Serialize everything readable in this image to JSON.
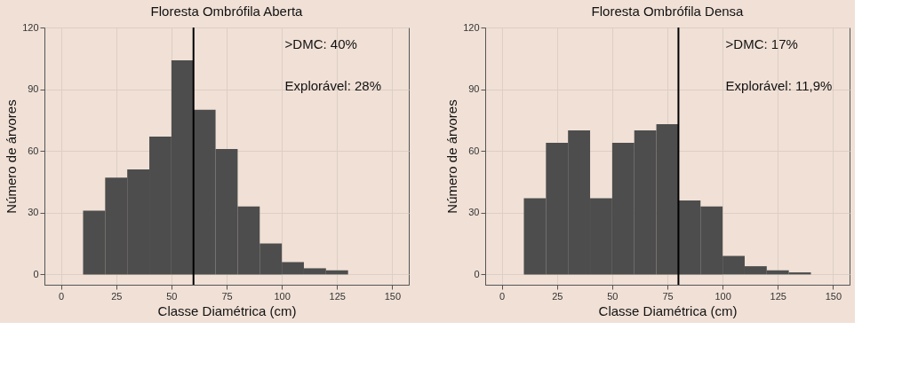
{
  "chart_data": [
    {
      "type": "histogram",
      "title": "Floresta Ombrófila Aberta",
      "xlabel": "Classe Diamétrica (cm)",
      "ylabel": "Número de árvores",
      "bins": [
        10,
        20,
        30,
        40,
        50,
        60,
        70,
        80,
        90,
        100,
        110,
        120,
        130
      ],
      "values": [
        31,
        47,
        51,
        67,
        104,
        80,
        61,
        33,
        15,
        6,
        3,
        2
      ],
      "color": "#4d4d4d",
      "xlim": [
        -7.5,
        157.5
      ],
      "ylim": [
        -5,
        120
      ],
      "xticks": [
        0,
        25,
        50,
        75,
        100,
        125,
        150
      ],
      "yticks": [
        0,
        30,
        60,
        90,
        120
      ],
      "grid": true,
      "ref_lines": [
        {
          "axis": "x",
          "value": 60,
          "color": "#000000"
        }
      ],
      "annotations": [
        ">DMC: 40%",
        "Explorável: 28%"
      ]
    },
    {
      "type": "histogram",
      "title": "Floresta Ombrófila Densa",
      "xlabel": "Classe Diamétrica (cm)",
      "ylabel": "Número de árvores",
      "bins": [
        10,
        20,
        30,
        40,
        50,
        60,
        70,
        80,
        90,
        100,
        110,
        120,
        130,
        140
      ],
      "values": [
        37,
        64,
        70,
        37,
        64,
        70,
        73,
        36,
        33,
        9,
        4,
        2,
        1
      ],
      "color": "#4d4d4d",
      "xlim": [
        -7.5,
        157.5
      ],
      "ylim": [
        -5,
        120
      ],
      "xticks": [
        0,
        25,
        50,
        75,
        100,
        125,
        150
      ],
      "yticks": [
        0,
        30,
        60,
        90,
        120
      ],
      "grid": true,
      "ref_lines": [
        {
          "axis": "x",
          "value": 80,
          "color": "#000000"
        }
      ],
      "annotations": [
        ">DMC: 17%",
        "Explorável: 11,9%"
      ]
    }
  ]
}
